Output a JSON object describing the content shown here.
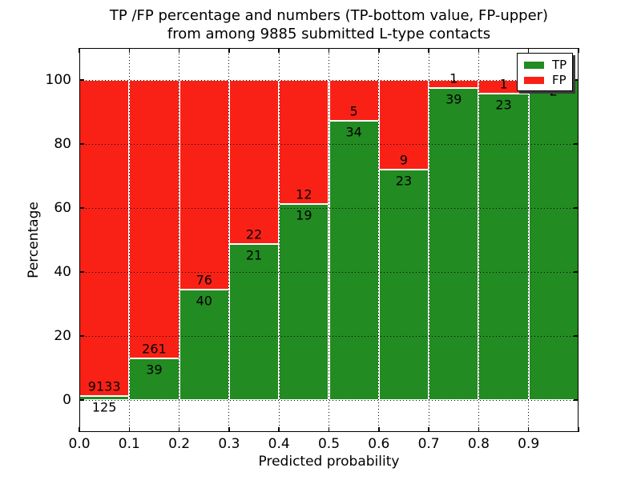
{
  "chart_data": {
    "type": "bar",
    "stacked": true,
    "normalized_to_percent": true,
    "title_lines": [
      "TP /FP percentage and numbers (TP-bottom value, FP-upper)",
      "from among 9885 submitted L-type contacts"
    ],
    "xlabel": "Predicted probability",
    "ylabel": "Percentage",
    "xlim": [
      0.0,
      1.0
    ],
    "ylim": [
      -10,
      110
    ],
    "xtick_labels": [
      "0.0",
      "0.1",
      "0.2",
      "0.3",
      "0.4",
      "0.5",
      "0.6",
      "0.7",
      "0.8",
      "0.9"
    ],
    "ytick_labels": [
      "0",
      "20",
      "40",
      "60",
      "80",
      "100"
    ],
    "ytick_values": [
      0,
      20,
      40,
      60,
      80,
      100
    ],
    "grid": "dotted",
    "bar_edge_color": "#ffffff",
    "legend": {
      "position": "upper right",
      "entries": [
        {
          "label": "TP",
          "color": "#228b22"
        },
        {
          "label": "FP",
          "color": "#f92116"
        }
      ]
    },
    "bins": [
      {
        "x_start": 0.0,
        "x_end": 0.1,
        "tp_count": 125,
        "fp_count": 9133,
        "tp_pct": 1.35
      },
      {
        "x_start": 0.1,
        "x_end": 0.2,
        "tp_count": 39,
        "fp_count": 261,
        "tp_pct": 13.0
      },
      {
        "x_start": 0.2,
        "x_end": 0.3,
        "tp_count": 40,
        "fp_count": 76,
        "tp_pct": 34.5
      },
      {
        "x_start": 0.3,
        "x_end": 0.4,
        "tp_count": 21,
        "fp_count": 22,
        "tp_pct": 48.8
      },
      {
        "x_start": 0.4,
        "x_end": 0.5,
        "tp_count": 19,
        "fp_count": 12,
        "tp_pct": 61.3
      },
      {
        "x_start": 0.5,
        "x_end": 0.6,
        "tp_count": 34,
        "fp_count": 5,
        "tp_pct": 87.2
      },
      {
        "x_start": 0.6,
        "x_end": 0.7,
        "tp_count": 23,
        "fp_count": 9,
        "tp_pct": 71.9
      },
      {
        "x_start": 0.7,
        "x_end": 0.8,
        "tp_count": 39,
        "fp_count": 1,
        "tp_pct": 97.5
      },
      {
        "x_start": 0.8,
        "x_end": 0.9,
        "tp_count": 23,
        "fp_count": 1,
        "tp_pct": 95.8
      },
      {
        "x_start": 0.9,
        "x_end": 1.0,
        "tp_count": 2,
        "fp_count": null,
        "tp_pct": 100
      }
    ]
  }
}
